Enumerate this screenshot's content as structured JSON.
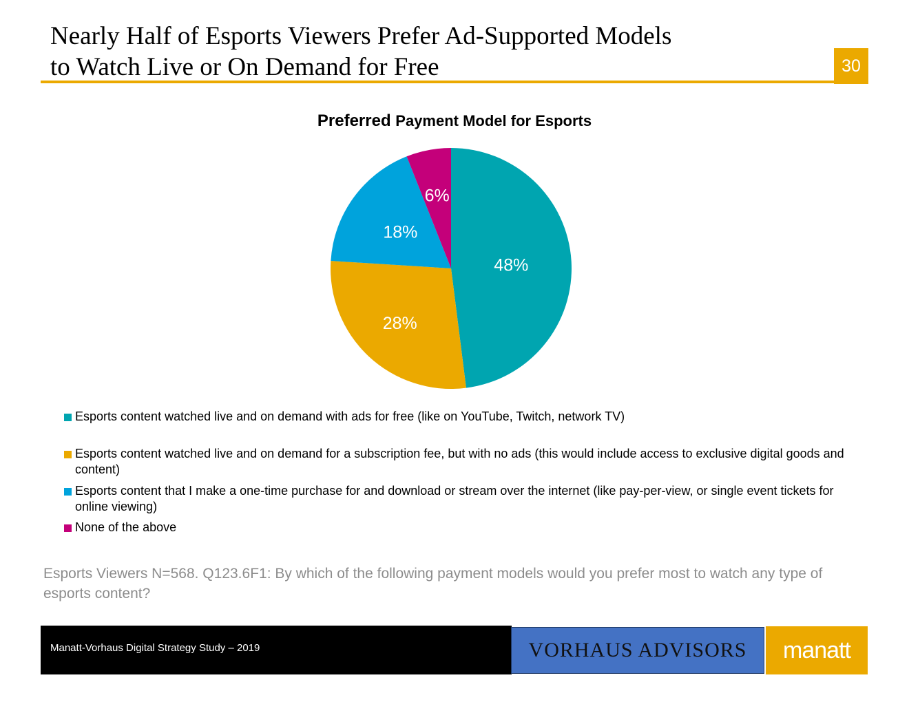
{
  "slide": {
    "title_line1": "Nearly Half of Esports Viewers Prefer Ad-Supported Models",
    "title_line2": "to Watch Live or On Demand for Free",
    "page_number": "30",
    "accent_color": "#EBA900"
  },
  "chart_data": {
    "type": "pie",
    "title_part1": "Preferred",
    "title_part2": "Payment Model for Esports",
    "slices": [
      {
        "label": "Esports content watched live and on demand with ads for free (like on YouTube, Twitch, network TV)",
        "value": 48,
        "value_label": "48%",
        "color": "#00A5B0"
      },
      {
        "label": "Esports content watched live and on demand for a subscription fee, but with no ads (this would include access to exclusive digital goods and content)",
        "value": 28,
        "value_label": "28%",
        "color": "#EBA900"
      },
      {
        "label": "Esports content that I make a one-time purchase for and download or stream over the internet (like pay-per-view, or single event tickets for online viewing)",
        "value": 18,
        "value_label": "18%",
        "color": "#00A3DC"
      },
      {
        "label": "None of the above",
        "value": 6,
        "value_label": "6%",
        "color": "#C4007A"
      }
    ],
    "legend_position": "bottom"
  },
  "note": "Esports Viewers N=568. Q123.6F1: By which of the following payment models would you prefer most to watch any type of esports content?",
  "footer": {
    "study": "Manatt-Vorhaus Digital Strategy Study – 2019",
    "logo_vorhaus": "VORHAUS ADVISORS",
    "logo_manatt": "manatt"
  }
}
